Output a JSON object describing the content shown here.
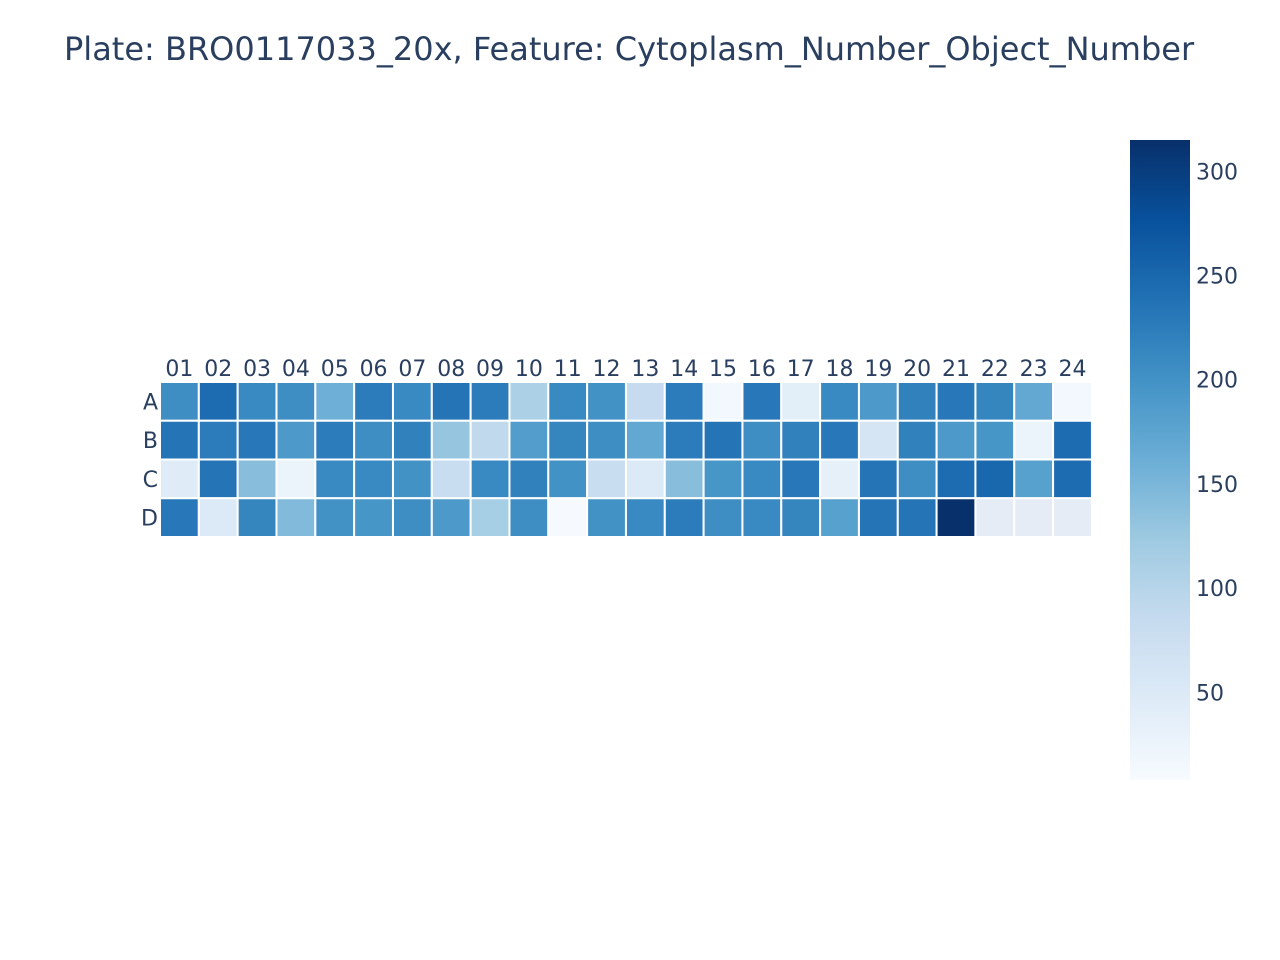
{
  "chart_data": {
    "type": "heatmap",
    "title": "Plate: BRO0117033_20x, Feature: Cytoplasm_Number_Object_Number",
    "columns": [
      "01",
      "02",
      "03",
      "04",
      "05",
      "06",
      "07",
      "08",
      "09",
      "10",
      "11",
      "12",
      "13",
      "14",
      "15",
      "16",
      "17",
      "18",
      "19",
      "20",
      "21",
      "22",
      "23",
      "24"
    ],
    "rows": [
      "A",
      "B",
      "C",
      "D"
    ],
    "values": [
      [
        205,
        245,
        210,
        205,
        160,
        225,
        210,
        235,
        225,
        110,
        210,
        200,
        85,
        225,
        15,
        230,
        40,
        210,
        190,
        220,
        230,
        215,
        170,
        15
      ],
      [
        235,
        225,
        230,
        190,
        225,
        205,
        220,
        130,
        90,
        185,
        215,
        205,
        170,
        225,
        235,
        205,
        220,
        230,
        60,
        220,
        190,
        195,
        25,
        245
      ],
      [
        45,
        235,
        140,
        25,
        210,
        210,
        200,
        80,
        210,
        220,
        200,
        80,
        50,
        140,
        195,
        210,
        230,
        35,
        235,
        205,
        245,
        250,
        180,
        245
      ],
      [
        230,
        50,
        215,
        145,
        200,
        195,
        205,
        190,
        115,
        205,
        10,
        200,
        210,
        225,
        205,
        210,
        215,
        180,
        235,
        235,
        315,
        null,
        null,
        null
      ]
    ],
    "colorscale": "Blues",
    "colorbar": {
      "ticks": [
        50,
        100,
        150,
        200,
        250,
        300
      ],
      "range": [
        8,
        315
      ]
    },
    "missing_color": "#e5ecf6"
  }
}
